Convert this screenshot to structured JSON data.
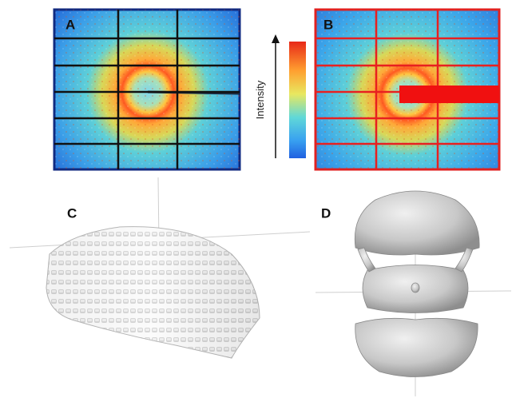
{
  "panels": [
    {
      "label": "A"
    },
    {
      "label": "B"
    },
    {
      "label": "C"
    },
    {
      "label": "D"
    }
  ],
  "colorbar": {
    "label": "Intensity"
  }
}
